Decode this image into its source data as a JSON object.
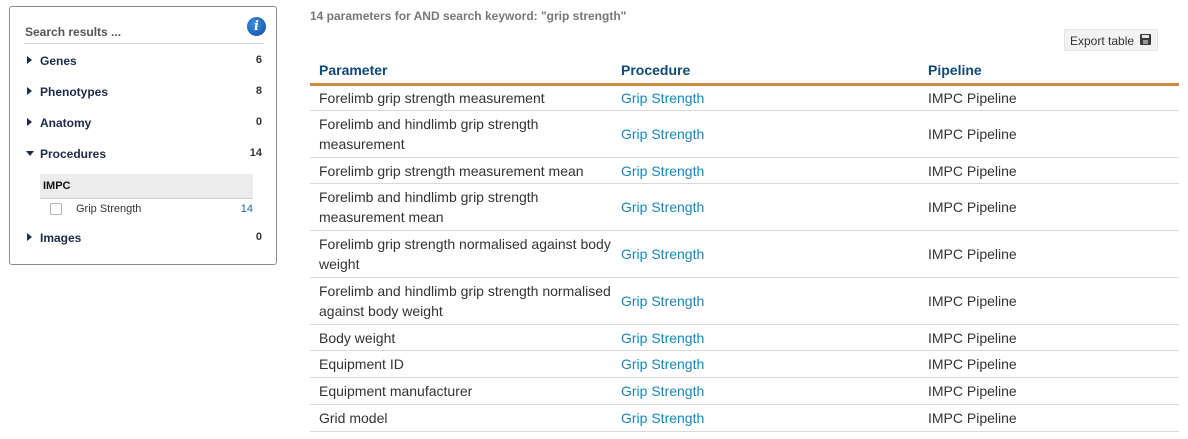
{
  "sidebar": {
    "title": "Search results ...",
    "facets": [
      {
        "label": "Genes",
        "count": "6",
        "expanded": false
      },
      {
        "label": "Phenotypes",
        "count": "8",
        "expanded": false
      },
      {
        "label": "Anatomy",
        "count": "0",
        "expanded": false
      },
      {
        "label": "Procedures",
        "count": "14",
        "expanded": true
      },
      {
        "label": "Images",
        "count": "0",
        "expanded": false
      }
    ],
    "procedures_group": "IMPC",
    "procedures_item": {
      "label": "Grip Strength",
      "count": "14",
      "checked": false
    }
  },
  "main": {
    "summary": "14 parameters for AND search keyword: \"grip strength\"",
    "export_label": "Export table",
    "columns": [
      "Parameter",
      "Procedure",
      "Pipeline"
    ],
    "rows": [
      {
        "parameter": "Forelimb grip strength measurement",
        "procedure": "Grip Strength",
        "pipeline": "IMPC Pipeline"
      },
      {
        "parameter": "Forelimb and hindlimb grip strength measurement",
        "procedure": "Grip Strength",
        "pipeline": "IMPC Pipeline"
      },
      {
        "parameter": "Forelimb grip strength measurement mean",
        "procedure": "Grip Strength",
        "pipeline": "IMPC Pipeline"
      },
      {
        "parameter": "Forelimb and hindlimb grip strength measurement mean",
        "procedure": "Grip Strength",
        "pipeline": "IMPC Pipeline"
      },
      {
        "parameter": "Forelimb grip strength normalised against body weight",
        "procedure": "Grip Strength",
        "pipeline": "IMPC Pipeline"
      },
      {
        "parameter": "Forelimb and hindlimb grip strength normalised against body weight",
        "procedure": "Grip Strength",
        "pipeline": "IMPC Pipeline"
      },
      {
        "parameter": "Body weight",
        "procedure": "Grip Strength",
        "pipeline": "IMPC Pipeline"
      },
      {
        "parameter": "Equipment ID",
        "procedure": "Grip Strength",
        "pipeline": "IMPC Pipeline"
      },
      {
        "parameter": "Equipment manufacturer",
        "procedure": "Grip Strength",
        "pipeline": "IMPC Pipeline"
      },
      {
        "parameter": "Grid model",
        "procedure": "Grip Strength",
        "pipeline": "IMPC Pipeline"
      }
    ]
  },
  "colors": {
    "header_text": "#0c4a78",
    "link": "#1a84b8",
    "accent_rule": "#cd8a45",
    "info_icon": "#1a5fb4"
  },
  "icons": [
    "info-icon",
    "caret-right-icon",
    "caret-down-icon",
    "checkbox",
    "floppy-disk-icon"
  ]
}
